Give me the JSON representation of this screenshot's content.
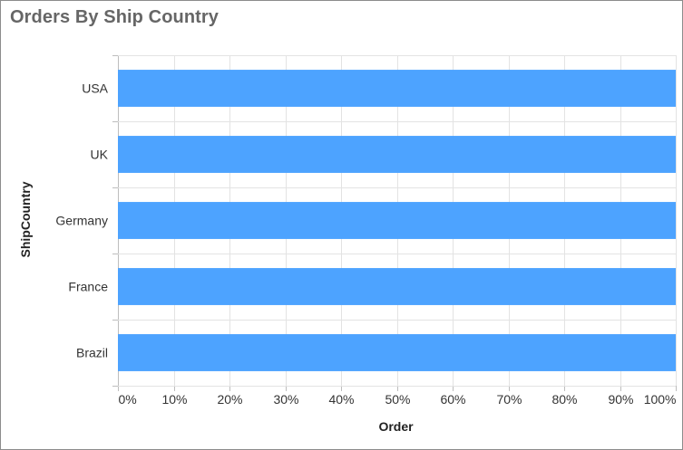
{
  "chart_data": {
    "type": "bar",
    "orientation": "horizontal",
    "stacked": "100%",
    "title": "Orders By Ship Country",
    "xlabel": "Order",
    "ylabel": "ShipCountry",
    "categories": [
      "USA",
      "UK",
      "Germany",
      "France",
      "Brazil"
    ],
    "series": [
      {
        "values": [
          100,
          100,
          100,
          100,
          100
        ]
      }
    ],
    "xlim": [
      0,
      100
    ],
    "xticks": [
      "0%",
      "10%",
      "20%",
      "30%",
      "40%",
      "50%",
      "60%",
      "70%",
      "80%",
      "90%",
      "100%"
    ],
    "grid": true,
    "legend": "none",
    "colors": {
      "bar": "#4da3ff",
      "grid": "#e3e3e3",
      "axis": "#bdbdbd"
    }
  }
}
